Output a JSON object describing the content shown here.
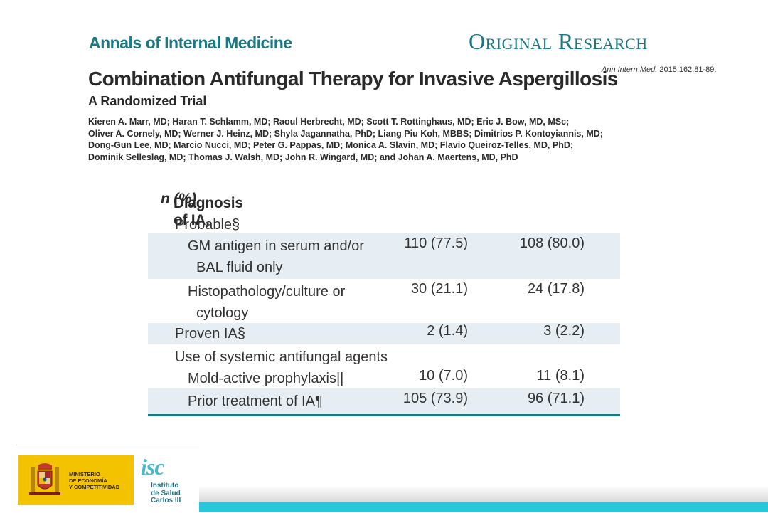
{
  "header": {
    "journal": "Annals of Internal Medicine",
    "section": "Original Research",
    "citation_journal": "Ann Intern Med.",
    "citation_ref": "2015;162:81-89."
  },
  "article": {
    "title": "Combination Antifungal Therapy for Invasive Aspergillosis",
    "subtitle": "A Randomized Trial",
    "authors": [
      "Kieren A. Marr, MD; Haran T. Schlamm, MD; Raoul Herbrecht, MD; Scott T. Rottinghaus, MD; Eric J. Bow, MD, MSc;",
      "Oliver A. Cornely, MD; Werner J. Heinz, MD; Shyla Jagannatha, PhD; Liang Piu Koh, MBBS; Dimitrios P. Kontoyiannis, MD;",
      "Dong-Gun Lee, MD; Marcio Nucci, MD; Peter G. Pappas, MD; Monica A. Slavin, MD; Flavio Queiroz-Telles, MD, PhD;",
      "Dominik Selleslag, MD; Thomas J. Walsh, MD; John R. Wingard, MD; and Johan A. Maertens, MD, PhD"
    ]
  },
  "table": {
    "heading": "Diagnosis of IA,",
    "heading_italic": "n",
    "heading_suffix": "(%)",
    "rows": [
      {
        "label": "Probable§",
        "v1": "",
        "v2": ""
      },
      {
        "label": "GM antigen in serum and/or",
        "label2": "BAL fluid only",
        "v1": "110 (77.5)",
        "v2": "108 (80.0)"
      },
      {
        "label": "Histopathology/culture or",
        "label2": "cytology",
        "v1": "30 (21.1)",
        "v2": "24 (17.8)"
      },
      {
        "label": "Proven IA§",
        "v1": "2 (1.4)",
        "v2": "3 (2.2)"
      },
      {
        "label": "Use of systemic antifungal agents",
        "v1": "",
        "v2": ""
      },
      {
        "label": "Mold-active prophylaxis||",
        "v1": "10 (7.0)",
        "v2": "11 (8.1)"
      },
      {
        "label": "Prior treatment of IA¶",
        "v1": "105 (73.9)",
        "v2": "96 (71.1)"
      }
    ]
  },
  "logos": {
    "ministry_line1": "MINISTERIO",
    "ministry_line2": "DE ECONOMÍA",
    "ministry_line3": "Y COMPETITIVIDAD",
    "isciii_glyph": "isc",
    "isciii_line1": "Instituto",
    "isciii_line2": "de Salud",
    "isciii_line3": "Carlos III"
  },
  "colors": {
    "accent": "#1a7a83",
    "row_shade": "#e6eef3",
    "footer_bar": "#2ac6dc",
    "ministry_yellow": "#f3c300"
  }
}
